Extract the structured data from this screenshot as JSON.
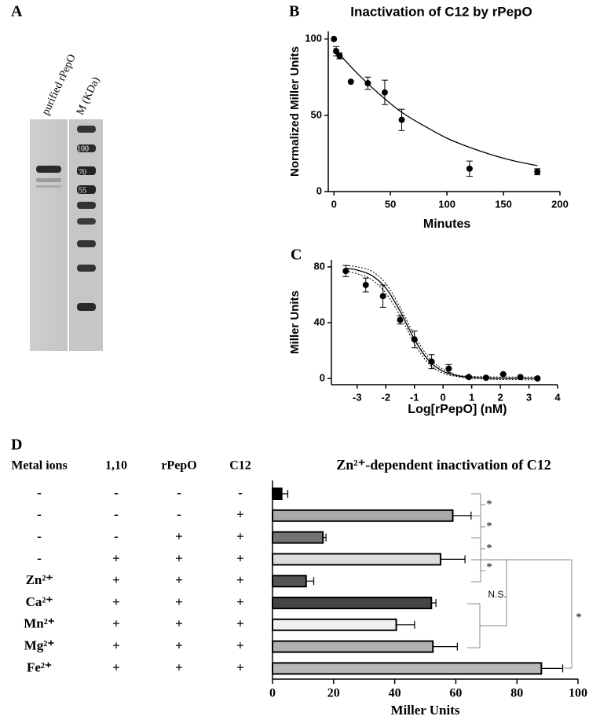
{
  "gel_panel": {
    "label": "A",
    "lanes": [
      "purified rPepO",
      "M (KDa)"
    ],
    "markers": [
      "100",
      "70",
      "55"
    ]
  },
  "chart_data": [
    {
      "type": "scatter",
      "panel_label": "B",
      "title": "Inactivation of C12 by rPepO",
      "xlabel": "Minutes",
      "ylabel": "Normalized Miller Units",
      "x": [
        0,
        2,
        5,
        15,
        30,
        45,
        60,
        120,
        180
      ],
      "values": [
        100,
        92,
        89,
        72,
        71,
        65,
        47,
        15,
        13
      ],
      "errors": [
        0,
        3,
        2,
        0,
        4,
        8,
        7,
        5,
        2
      ],
      "curves": [
        {
          "style": "solid",
          "x": [
            0,
            20,
            40,
            60,
            80,
            100,
            120,
            140,
            160,
            180
          ],
          "values": [
            94,
            78,
            64,
            52,
            43,
            35,
            29,
            24,
            20,
            17
          ]
        }
      ],
      "color": "#000000",
      "xlim": [
        -5,
        200
      ],
      "ylim": [
        0,
        105
      ],
      "xticks": [
        0,
        50,
        100,
        150,
        200
      ],
      "yticks": [
        0,
        50,
        100
      ]
    },
    {
      "type": "scatter",
      "panel_label": "C",
      "xlabel": "Log[rPepO] (nM)",
      "ylabel": "Miller Units",
      "x": [
        -3.4,
        -2.7,
        -2.1,
        -1.5,
        -1.0,
        -0.4,
        0.2,
        0.9,
        1.5,
        2.1,
        2.7,
        3.3
      ],
      "values": [
        77,
        67,
        59,
        42,
        28,
        12,
        7,
        1,
        0.5,
        3,
        1,
        0
      ],
      "errors": [
        4,
        5,
        8,
        3,
        6,
        5,
        3,
        0.5,
        0.5,
        0.5,
        0,
        0
      ],
      "curves": [
        {
          "style": "solid",
          "x": [
            -3.4,
            -3,
            -2.5,
            -2,
            -1.5,
            -1,
            -0.5,
            0,
            0.5,
            1,
            2,
            3.3
          ],
          "values": [
            79,
            77.7,
            73.9,
            64.8,
            48.2,
            28,
            12.8,
            5.1,
            1.9,
            0.7,
            0.1,
            0
          ]
        },
        {
          "style": "dotted",
          "x": [
            -3.4,
            -3,
            -2.5,
            -2,
            -1.5,
            -1,
            -0.5,
            0,
            0.5,
            1,
            2,
            3.3
          ],
          "values": [
            81,
            80,
            77,
            68,
            51,
            31,
            15,
            6.5,
            2.5,
            1.5,
            1,
            1
          ]
        },
        {
          "style": "dotted",
          "x": [
            -3.4,
            -3,
            -2.5,
            -2,
            -1.5,
            -1,
            -0.5,
            0,
            0.5,
            1,
            2,
            3.3
          ],
          "values": [
            77,
            75,
            71,
            61,
            45,
            25,
            10.5,
            3.7,
            1.3,
            0,
            -0.8,
            -1
          ]
        }
      ],
      "color": "#000000",
      "xlim": [
        -3.9,
        4
      ],
      "ylim": [
        -4.5,
        85
      ],
      "xticks": [
        -3,
        -2,
        -1,
        0,
        1,
        2,
        3,
        4
      ],
      "yticks": [
        0,
        40,
        80
      ]
    },
    {
      "type": "barh",
      "panel_label": "D",
      "title": "Zn²⁺-dependent inactivation of C12",
      "xlabel": "Miller Units",
      "conditions": {
        "headers": [
          "Metal ions",
          "1,10",
          "rPepO",
          "C12"
        ],
        "rows": [
          [
            "-",
            "-",
            "-",
            "-"
          ],
          [
            "-",
            "-",
            "-",
            "+"
          ],
          [
            "-",
            "-",
            "+",
            "+"
          ],
          [
            "-",
            "+",
            "+",
            "+"
          ],
          [
            "Zn²⁺",
            "+",
            "+",
            "+"
          ],
          [
            "Ca²⁺",
            "+",
            "+",
            "+"
          ],
          [
            "Mn²⁺",
            "+",
            "+",
            "+"
          ],
          [
            "Mg²⁺",
            "+",
            "+",
            "+"
          ],
          [
            "Fe²⁺",
            "+",
            "+",
            "+"
          ]
        ]
      },
      "values": [
        3,
        59,
        16.5,
        55,
        11,
        52,
        40.5,
        52.5,
        88
      ],
      "errors": [
        2,
        6,
        1,
        8,
        2.5,
        1.5,
        6,
        8,
        7
      ],
      "colors": [
        "#000000",
        "#a9a9a9",
        "#737373",
        "#dcdcdc",
        "#555555",
        "#444444",
        "#f0f0f0",
        "#b0b0b0",
        "#b8b8b8"
      ],
      "annotations": [
        "*",
        "*",
        "*",
        "*",
        "N.S.",
        "*"
      ],
      "xlim": [
        0,
        100
      ],
      "xticks": [
        0,
        20,
        40,
        60,
        80,
        100
      ]
    }
  ]
}
